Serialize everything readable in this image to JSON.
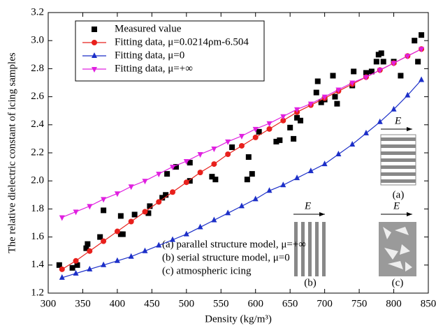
{
  "chart_data": {
    "type": "line",
    "x_label": "Density (kg/m³)",
    "y_label": "The relative dielectric constant of icing samples",
    "xlim": [
      300,
      850
    ],
    "ylim": [
      1.2,
      3.2
    ],
    "xticks": [
      300,
      350,
      400,
      450,
      500,
      550,
      600,
      650,
      700,
      750,
      800,
      850
    ],
    "yticks": [
      1.2,
      1.4,
      1.6,
      1.8,
      {
        "value": 2,
        "label": "2.0"
      },
      2.2,
      2.4,
      2.6,
      2.8,
      {
        "value": 3,
        "label": "3.0"
      },
      3.2
    ],
    "legend": "upper left",
    "series": [
      {
        "name": "Measured value",
        "color": "#000000",
        "marker": "square",
        "mode": "markers",
        "x": [
          316,
          335,
          342,
          357,
          355,
          375,
          380,
          405,
          405,
          408,
          425,
          445,
          447,
          465,
          470,
          472,
          485,
          505,
          505,
          537,
          542,
          566,
          588,
          590,
          595,
          605,
          630,
          635,
          650,
          655,
          660,
          665,
          690,
          688,
          695,
          700,
          712,
          715,
          718,
          740,
          742,
          760,
          768,
          775,
          778,
          782,
          785,
          800,
          810,
          830,
          835,
          840
        ],
        "values": [
          1.4,
          1.38,
          1.4,
          1.55,
          1.52,
          1.6,
          1.79,
          1.62,
          1.75,
          1.62,
          1.76,
          1.77,
          1.82,
          1.88,
          1.9,
          2.05,
          2.1,
          2.0,
          2.13,
          2.03,
          2.01,
          2.24,
          2.01,
          2.17,
          2.05,
          2.35,
          2.28,
          2.29,
          2.38,
          2.3,
          2.45,
          2.43,
          2.71,
          2.63,
          2.56,
          2.58,
          2.75,
          2.6,
          2.55,
          2.68,
          2.78,
          2.77,
          2.78,
          2.85,
          2.9,
          2.91,
          2.85,
          2.85,
          2.75,
          3.0,
          2.85,
          3.04
        ]
      },
      {
        "name": "Fitting data, μ=0.0214ρm-6.504",
        "color": "#e8201c",
        "marker": "circle",
        "mode": "lines+markers",
        "x": [
          320,
          340,
          360,
          380,
          400,
          420,
          440,
          460,
          480,
          500,
          520,
          540,
          560,
          580,
          600,
          620,
          640,
          660,
          680,
          700,
          720,
          740,
          760,
          780,
          800,
          820,
          840
        ],
        "values": [
          1.37,
          1.43,
          1.5,
          1.57,
          1.64,
          1.71,
          1.78,
          1.85,
          1.92,
          1.99,
          2.06,
          2.12,
          2.19,
          2.25,
          2.31,
          2.37,
          2.43,
          2.49,
          2.54,
          2.59,
          2.64,
          2.69,
          2.74,
          2.79,
          2.84,
          2.89,
          2.94
        ]
      },
      {
        "name": "Fitting data, μ=0",
        "color": "#1c2fc8",
        "marker": "triangle-up",
        "mode": "lines+markers",
        "x": [
          320,
          340,
          360,
          380,
          400,
          420,
          440,
          460,
          480,
          500,
          520,
          540,
          560,
          580,
          600,
          620,
          640,
          660,
          680,
          700,
          720,
          740,
          760,
          780,
          800,
          820,
          840
        ],
        "values": [
          1.31,
          1.34,
          1.37,
          1.4,
          1.43,
          1.46,
          1.5,
          1.54,
          1.58,
          1.62,
          1.67,
          1.72,
          1.77,
          1.82,
          1.87,
          1.93,
          1.97,
          2.02,
          2.07,
          2.12,
          2.19,
          2.26,
          2.34,
          2.42,
          2.51,
          2.61,
          2.72
        ]
      },
      {
        "name": "Fitting data, μ=+∞",
        "color": "#e020e0",
        "marker": "triangle-down",
        "mode": "lines+markers",
        "x": [
          320,
          340,
          360,
          380,
          400,
          420,
          440,
          460,
          480,
          500,
          520,
          540,
          560,
          580,
          600,
          620,
          640,
          660,
          680,
          700,
          720,
          740,
          760,
          780,
          800,
          820,
          840
        ],
        "values": [
          1.74,
          1.78,
          1.82,
          1.87,
          1.91,
          1.96,
          2.0,
          2.05,
          2.1,
          2.14,
          2.19,
          2.23,
          2.28,
          2.32,
          2.37,
          2.41,
          2.46,
          2.51,
          2.55,
          2.6,
          2.65,
          2.7,
          2.74,
          2.79,
          2.84,
          2.89,
          2.94
        ]
      }
    ],
    "annotations": [
      "(a) parallel structure model, μ=+∞",
      "(b) serial structure model, μ=0",
      "(c) atmospheric icing"
    ],
    "field_label": "E",
    "inset_labels": [
      "(a)",
      "(b)",
      "(c)"
    ]
  }
}
